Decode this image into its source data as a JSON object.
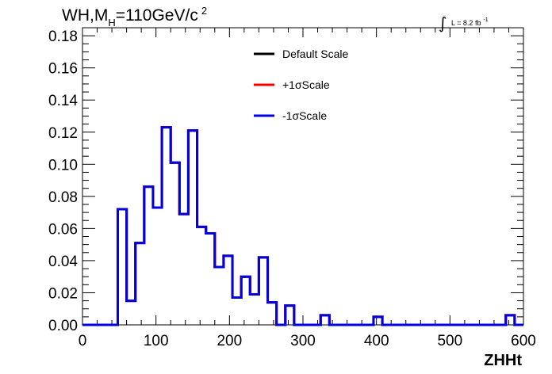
{
  "chart_data": {
    "type": "step",
    "title": {
      "prefix": "WH,M",
      "subscript": "H",
      "value": "=110GeV/c",
      "superscript": "2"
    },
    "luminosity": {
      "integral_symbol": "∫",
      "text": "L = 8.2 fb",
      "superscript": "-1"
    },
    "xlabel": "ZHHt",
    "ylabel": "",
    "xlim": [
      0,
      600
    ],
    "ylim": [
      0,
      0.185
    ],
    "x_ticks": [
      "0",
      "100",
      "200",
      "300",
      "400",
      "500",
      "600"
    ],
    "y_ticks": [
      "0.00",
      "0.02",
      "0.04",
      "0.06",
      "0.08",
      "0.10",
      "0.12",
      "0.14",
      "0.16",
      "0.18"
    ],
    "bin_width": 12,
    "bin_edges_start": 0,
    "legend_position": "top-center",
    "series": [
      {
        "name": "Default Scale",
        "color": "#000000",
        "values": [
          0,
          0,
          0,
          0,
          0.072,
          0.015,
          0.051,
          0.086,
          0.073,
          0.123,
          0.101,
          0.069,
          0.121,
          0.061,
          0.057,
          0.036,
          0.043,
          0.017,
          0.03,
          0.019,
          0.042,
          0.014,
          0,
          0.012,
          0,
          0,
          0,
          0.006,
          0,
          0,
          0,
          0,
          0,
          0.005,
          0,
          0,
          0,
          0,
          0,
          0,
          0,
          0,
          0,
          0,
          0,
          0,
          0,
          0,
          0.006,
          0
        ]
      },
      {
        "name": "+1σScale",
        "color": "#ff0000",
        "values": [
          0,
          0,
          0,
          0,
          0.072,
          0.015,
          0.051,
          0.086,
          0.073,
          0.123,
          0.101,
          0.069,
          0.121,
          0.061,
          0.057,
          0.036,
          0.043,
          0.017,
          0.03,
          0.019,
          0.042,
          0.014,
          0,
          0.012,
          0,
          0,
          0,
          0.006,
          0,
          0,
          0,
          0,
          0,
          0.005,
          0,
          0,
          0,
          0,
          0,
          0,
          0,
          0,
          0,
          0,
          0,
          0,
          0,
          0,
          0.006,
          0
        ]
      },
      {
        "name": "-1σScale",
        "color": "#0000e0",
        "values": [
          0,
          0,
          0,
          0,
          0.072,
          0.015,
          0.051,
          0.086,
          0.073,
          0.123,
          0.101,
          0.069,
          0.121,
          0.061,
          0.057,
          0.036,
          0.043,
          0.017,
          0.03,
          0.019,
          0.042,
          0.014,
          0,
          0.012,
          0,
          0,
          0,
          0.006,
          0,
          0,
          0,
          0,
          0,
          0.005,
          0,
          0,
          0,
          0,
          0,
          0,
          0,
          0,
          0,
          0,
          0,
          0,
          0,
          0,
          0.006,
          0
        ]
      }
    ]
  }
}
